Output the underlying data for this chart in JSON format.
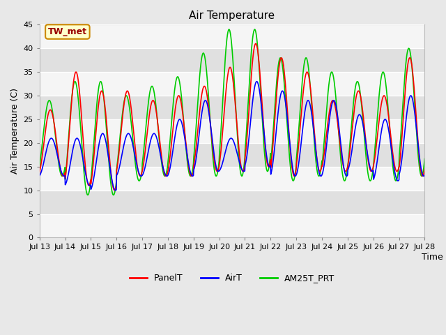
{
  "title": "Air Temperature",
  "ylabel": "Air Temperature (C)",
  "xlabel": "Time",
  "annotation": "TW_met",
  "ylim": [
    0,
    45
  ],
  "yticks": [
    0,
    5,
    10,
    15,
    20,
    25,
    30,
    35,
    40,
    45
  ],
  "xtick_labels": [
    "Jul 13",
    "Jul 14",
    "Jul 15",
    "Jul 16",
    "Jul 17",
    "Jul 18",
    "Jul 19",
    "Jul 20",
    "Jul 21",
    "Jul 22",
    "Jul 23",
    "Jul 24",
    "Jul 25",
    "Jul 26",
    "Jul 27",
    "Jul 28"
  ],
  "fig_bg_color": "#e8e8e8",
  "plot_bg_color": "#f5f5f5",
  "band_light": "#f5f5f5",
  "band_dark": "#e0e0e0",
  "legend_labels": [
    "PanelT",
    "AirT",
    "AM25T_PRT"
  ],
  "line_colors": [
    "#ff0000",
    "#0000ff",
    "#00cc00"
  ],
  "line_width": 1.2,
  "panel_mins": [
    13,
    11,
    10,
    13,
    13,
    13,
    14,
    14,
    15,
    13,
    14,
    14,
    14,
    14,
    13
  ],
  "panel_maxs": [
    27,
    35,
    31,
    31,
    29,
    30,
    32,
    36,
    41,
    38,
    35,
    29,
    31,
    30,
    38
  ],
  "air_mins": [
    13,
    11,
    10,
    13,
    13,
    13,
    14,
    14,
    15,
    13,
    13,
    13,
    14,
    12,
    13
  ],
  "air_maxs": [
    21,
    21,
    22,
    22,
    22,
    25,
    29,
    21,
    33,
    31,
    29,
    29,
    26,
    25,
    30
  ],
  "am25_mins": [
    13,
    9,
    9,
    12,
    13,
    13,
    13,
    13,
    14,
    12,
    13,
    12,
    12,
    12,
    13
  ],
  "am25_maxs": [
    29,
    33,
    33,
    30,
    32,
    34,
    39,
    44,
    44,
    38,
    38,
    35,
    33,
    35,
    40
  ],
  "panel_phase": 0.08,
  "air_phase": 0.04,
  "am25_phase": 0.12
}
